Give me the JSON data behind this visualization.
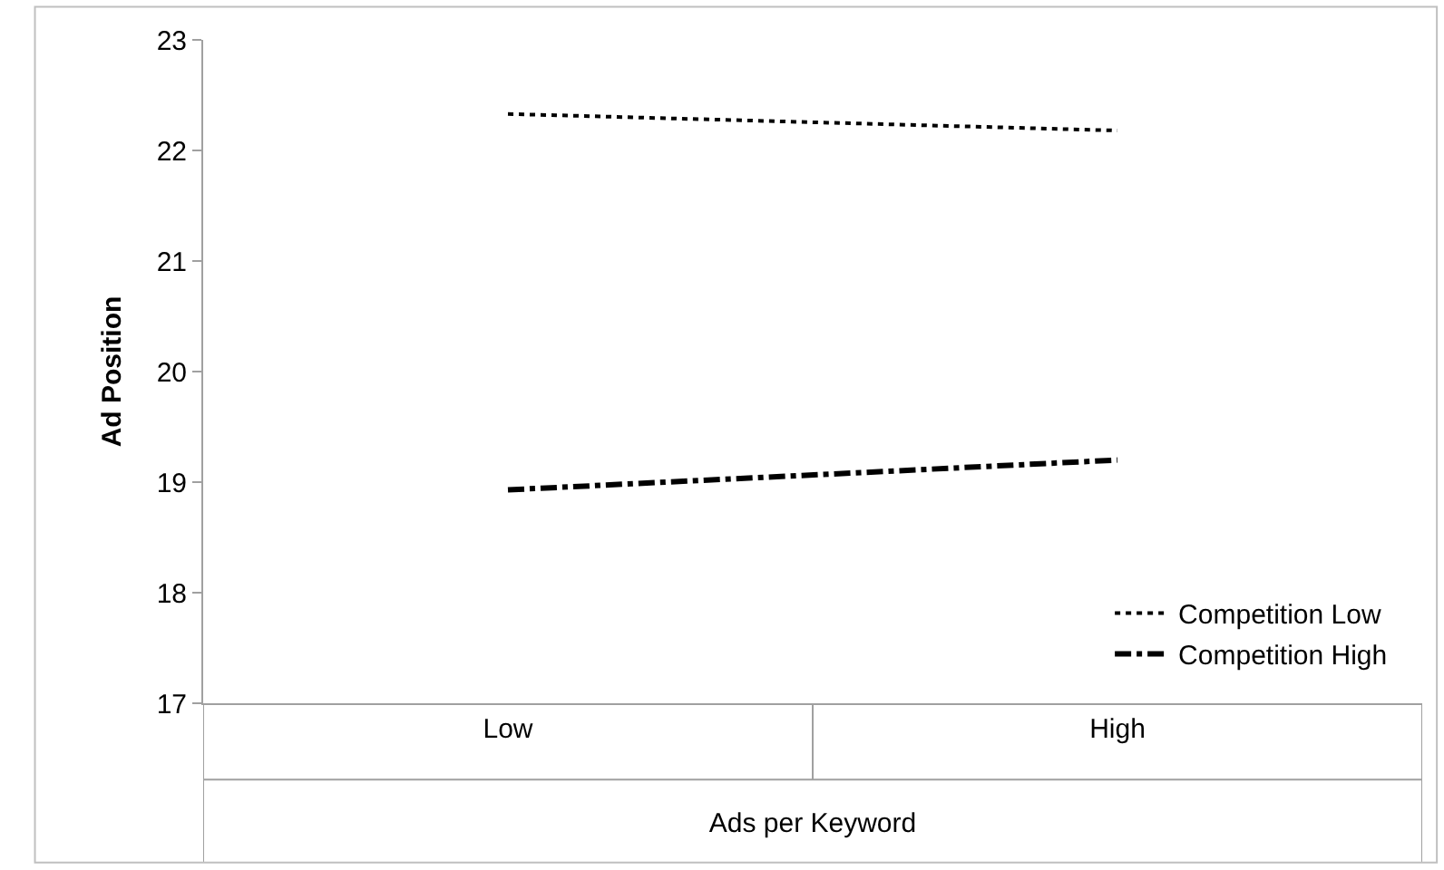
{
  "chart_data": {
    "type": "line",
    "xlabel": "Ads per Keyword",
    "ylabel": "Ad Position",
    "categories": [
      "Low",
      "High"
    ],
    "series": [
      {
        "name": "Competition Low",
        "color": "#000000",
        "line_style": "dotted",
        "values": [
          22.33,
          22.18
        ]
      },
      {
        "name": "Competition High",
        "color": "#000000",
        "line_style": "dashdot",
        "values": [
          18.93,
          19.2
        ]
      }
    ],
    "ylim": [
      17,
      23
    ],
    "yticks": [
      17,
      18,
      19,
      20,
      21,
      22,
      23
    ],
    "grid": false,
    "legend": "bottom right",
    "marker": "none"
  }
}
